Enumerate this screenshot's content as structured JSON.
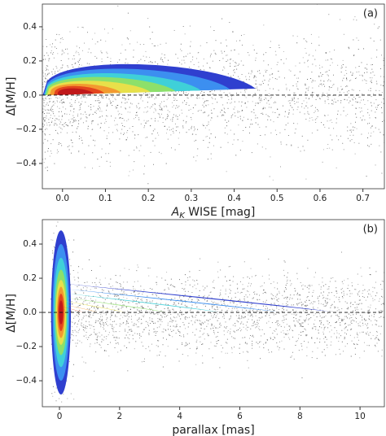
{
  "chart_data": [
    {
      "type": "density",
      "panel_label": "(a)",
      "xlabel": [
        "A",
        "K",
        " WISE [mag]"
      ],
      "ylabel": "Δ[M/H]",
      "xlim": [
        -0.047,
        0.75
      ],
      "ylim": [
        -0.548,
        0.533
      ],
      "xticks": [
        {
          "value": 0,
          "label": "0.0"
        },
        0.1,
        0.2,
        0.3,
        0.4,
        0.5,
        0.6,
        0.7
      ],
      "yticks": [
        {
          "value": -0.4,
          "label": "−0.4"
        },
        {
          "value": -0.2,
          "label": "−0.2"
        },
        {
          "value": 0,
          "label": "0.0"
        },
        0.2,
        0.4
      ],
      "hline": 0
    },
    {
      "type": "density",
      "panel_label": "(b)",
      "xlabel": [
        "parallax [mas]"
      ],
      "ylabel": "Δ[M/H]",
      "xlim": [
        -0.57,
        10.81
      ],
      "ylim": [
        -0.552,
        0.543
      ],
      "xticks": [
        0,
        2,
        4,
        6,
        8,
        10
      ],
      "yticks": [
        {
          "value": -0.4,
          "label": "−0.4"
        },
        {
          "value": -0.2,
          "label": "−0.2"
        },
        {
          "value": 0,
          "label": "0.0"
        },
        0.2,
        0.4
      ],
      "hline": 0
    }
  ]
}
